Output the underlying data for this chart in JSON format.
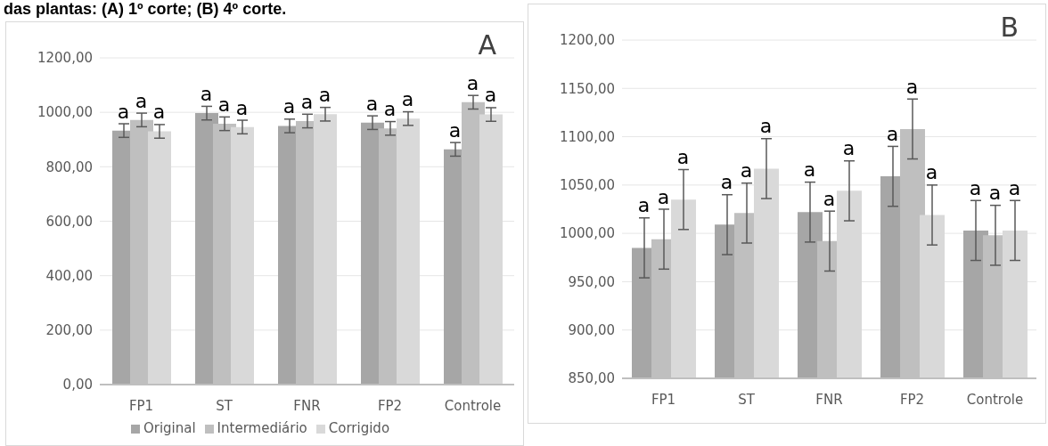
{
  "chart_data": [
    {
      "type": "bar",
      "title": "das plantas: (A) 1º corte; (B) 4º corte.",
      "categories": [
        "FP1",
        "ST",
        "FNR",
        "FP2",
        "Controle"
      ],
      "series": [
        {
          "name": "Original",
          "color": "#a6a6a6",
          "values": [
            933,
            997,
            950,
            962,
            864
          ],
          "errors": [
            25,
            25,
            25,
            25,
            25
          ],
          "value_labels": [
            "a",
            "a",
            "a",
            "a",
            "a"
          ]
        },
        {
          "name": "Intermediário",
          "color": "#bfbfbf",
          "values": [
            972,
            958,
            968,
            941,
            1037
          ],
          "errors": [
            25,
            25,
            25,
            25,
            25
          ],
          "value_labels": [
            "a",
            "a",
            "a",
            "a",
            "a"
          ]
        },
        {
          "name": "Corrigido",
          "color": "#d9d9d9",
          "values": [
            930,
            946,
            993,
            977,
            992
          ],
          "errors": [
            25,
            25,
            25,
            25,
            25
          ],
          "value_labels": [
            "a",
            "a",
            "a",
            "a",
            "a"
          ]
        }
      ],
      "ylim": [
        0,
        1200
      ],
      "yticks": [
        {
          "value": 0,
          "label": "0,00"
        },
        {
          "value": 200,
          "label": "200,00"
        },
        {
          "value": 400,
          "label": "400,00"
        },
        {
          "value": 600,
          "label": "600,00"
        },
        {
          "value": 800,
          "label": "800,00"
        },
        {
          "value": 1000,
          "label": "1000,00"
        },
        {
          "value": 1200,
          "label": "1200,00"
        }
      ],
      "grid": "y",
      "legend": "bottom",
      "annotations": [
        "A"
      ]
    },
    {
      "type": "bar",
      "categories": [
        "FP1",
        "ST",
        "FNR",
        "FP2",
        "Controle"
      ],
      "series": [
        {
          "color": "#a6a6a6",
          "values": [
            985,
            1009,
            1022,
            1059,
            1003
          ],
          "errors": [
            31,
            31,
            31,
            31,
            31
          ],
          "value_labels": [
            "a",
            "a",
            "a",
            "a",
            "a"
          ]
        },
        {
          "color": "#bfbfbf",
          "values": [
            994,
            1021,
            992,
            1108,
            998
          ],
          "errors": [
            31,
            31,
            31,
            31,
            31
          ],
          "value_labels": [
            "a",
            "a",
            "a",
            "a",
            "a"
          ]
        },
        {
          "color": "#d9d9d9",
          "values": [
            1035,
            1067,
            1044,
            1019,
            1003
          ],
          "errors": [
            31,
            31,
            31,
            31,
            31
          ],
          "value_labels": [
            "a",
            "a",
            "a",
            "a",
            "a"
          ]
        }
      ],
      "ylim": [
        850,
        1200
      ],
      "yticks": [
        {
          "value": 850,
          "label": "850,00"
        },
        {
          "value": 900,
          "label": "900,00"
        },
        {
          "value": 950,
          "label": "950,00"
        },
        {
          "value": 1000,
          "label": "1000,00"
        },
        {
          "value": 1050,
          "label": "1050,00"
        },
        {
          "value": 1100,
          "label": "1100,00"
        },
        {
          "value": 1150,
          "label": "1150,00"
        },
        {
          "value": 1200,
          "label": "1200,00"
        }
      ],
      "grid": "y",
      "legend": false,
      "annotations": [
        "B"
      ]
    }
  ]
}
